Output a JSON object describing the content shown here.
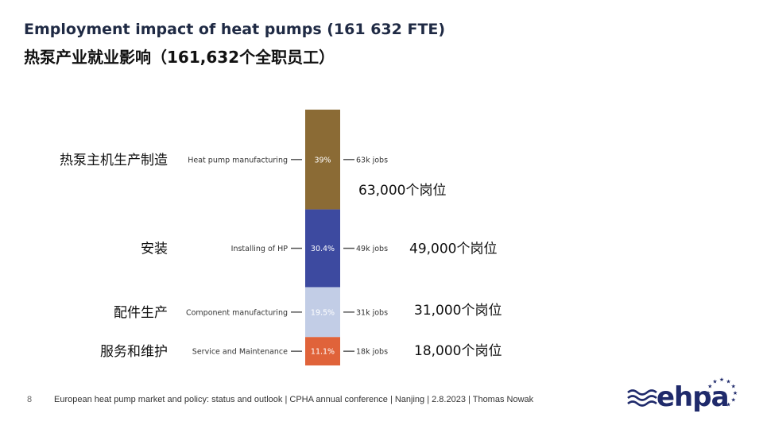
{
  "title": {
    "en": "Employment impact of heat pumps (161 632 FTE)",
    "cn": "热泵产业就业影响（161,632个全职员工）"
  },
  "chart_data": {
    "type": "bar",
    "subtype": "stacked-100-percent",
    "series": [
      {
        "name": "Heat pump manufacturing",
        "cn_label": "热泵主机生产制造",
        "percent": 39,
        "percent_label": "39%",
        "jobs_label": "63k jobs",
        "cn_jobs": "63,000个岗位",
        "color": "#8b6b35"
      },
      {
        "name": "Installing of HP",
        "cn_label": "安装",
        "percent": 30.4,
        "percent_label": "30.4%",
        "jobs_label": "49k jobs",
        "cn_jobs": "49,000个岗位",
        "color": "#3d4aa0"
      },
      {
        "name": "Component manufacturing",
        "cn_label": "配件生产",
        "percent": 19.5,
        "percent_label": "19.5%",
        "jobs_label": "31k jobs",
        "cn_jobs": "31,000个岗位",
        "color": "#c2cde6"
      },
      {
        "name": "Service and Maintenance",
        "cn_label": "服务和维护",
        "percent": 11.1,
        "percent_label": "11.1%",
        "jobs_label": "18k jobs",
        "cn_jobs": "18,000个岗位",
        "color": "#e0633a"
      }
    ]
  },
  "footer": {
    "page": "8",
    "text": "European heat pump market and policy: status and outlook  | CPHA annual conference | Nanjing | 2.8.2023 | Thomas Nowak"
  },
  "logo": {
    "text": "ehpa",
    "stars": 12
  }
}
